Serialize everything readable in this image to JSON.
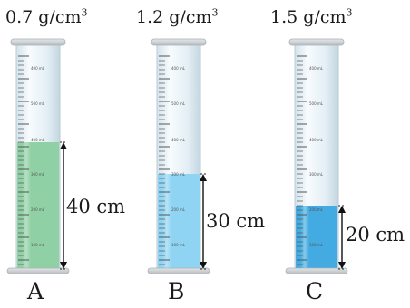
{
  "units": {
    "density_base": "g/cm",
    "density_exp": "3",
    "scale_suffix": "mL"
  },
  "scale_marks": [
    "400",
    "500",
    "400",
    "300",
    "200",
    "100"
  ],
  "colors": {
    "liquid_a": "#8fd0a4",
    "liquid_b": "#8fd4f2",
    "liquid_c": "#43abe1",
    "cylinder_glass": "#e7f1f6",
    "cylinder_rim": "#c9ced2"
  },
  "cylinders": [
    {
      "id": "a",
      "density_value": "0.7",
      "height_label": "40 cm",
      "letter": "A",
      "liquid_height_cm": 40
    },
    {
      "id": "b",
      "density_value": "1.2",
      "height_label": "30 cm",
      "letter": "B",
      "liquid_height_cm": 30
    },
    {
      "id": "c",
      "density_value": "1.5",
      "height_label": "20 cm",
      "letter": "C",
      "liquid_height_cm": 20
    }
  ]
}
